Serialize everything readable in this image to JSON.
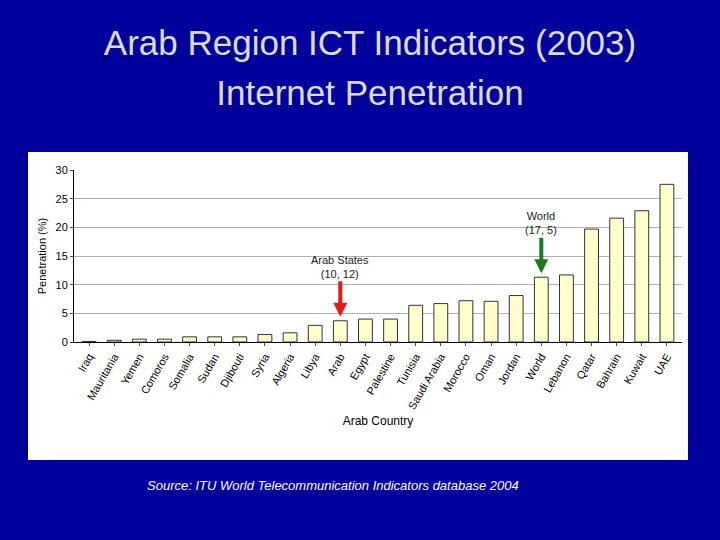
{
  "chart_data": {
    "type": "bar",
    "title": "Arab Region ICT Indicators (2003)",
    "subtitle": "Internet Penetration",
    "x_label": "Arab Country",
    "y_label": "Penetration (%)",
    "categories": [
      "Iraq",
      "Mauritania",
      "Yemen",
      "Comoros",
      "Somalia",
      "Sudan",
      "Djibouti",
      "Syria",
      "Algeria",
      "Libya",
      "Arab",
      "Egypt",
      "Palestine",
      "Tunisia",
      "Saudi Arabia",
      "Morocco",
      "Oman",
      "Jordan",
      "World",
      "Lebanon",
      "Qatar",
      "Bahrain",
      "Kuwait",
      "UAE"
    ],
    "values": [
      0.1,
      0.3,
      0.5,
      0.5,
      0.9,
      0.9,
      0.9,
      1.3,
      1.6,
      2.9,
      3.7,
      4.0,
      4.0,
      6.4,
      6.7,
      7.2,
      7.1,
      8.1,
      11.3,
      11.7,
      19.7,
      21.6,
      22.9,
      27.5
    ],
    "color": "#ffffcc",
    "ylim": [
      0,
      30
    ],
    "yticks": [
      0,
      5,
      10,
      15,
      20,
      25,
      30
    ],
    "grid": true,
    "annotations": [
      {
        "text": "Arab States\n(10, 12)",
        "category": "Arab",
        "color": "#e3191c"
      },
      {
        "text": "World\n(17, 5)",
        "category": "World",
        "color": "#1b7a1b"
      }
    ],
    "source": "Source: ITU World Telecommunication Indicators database 2004"
  }
}
